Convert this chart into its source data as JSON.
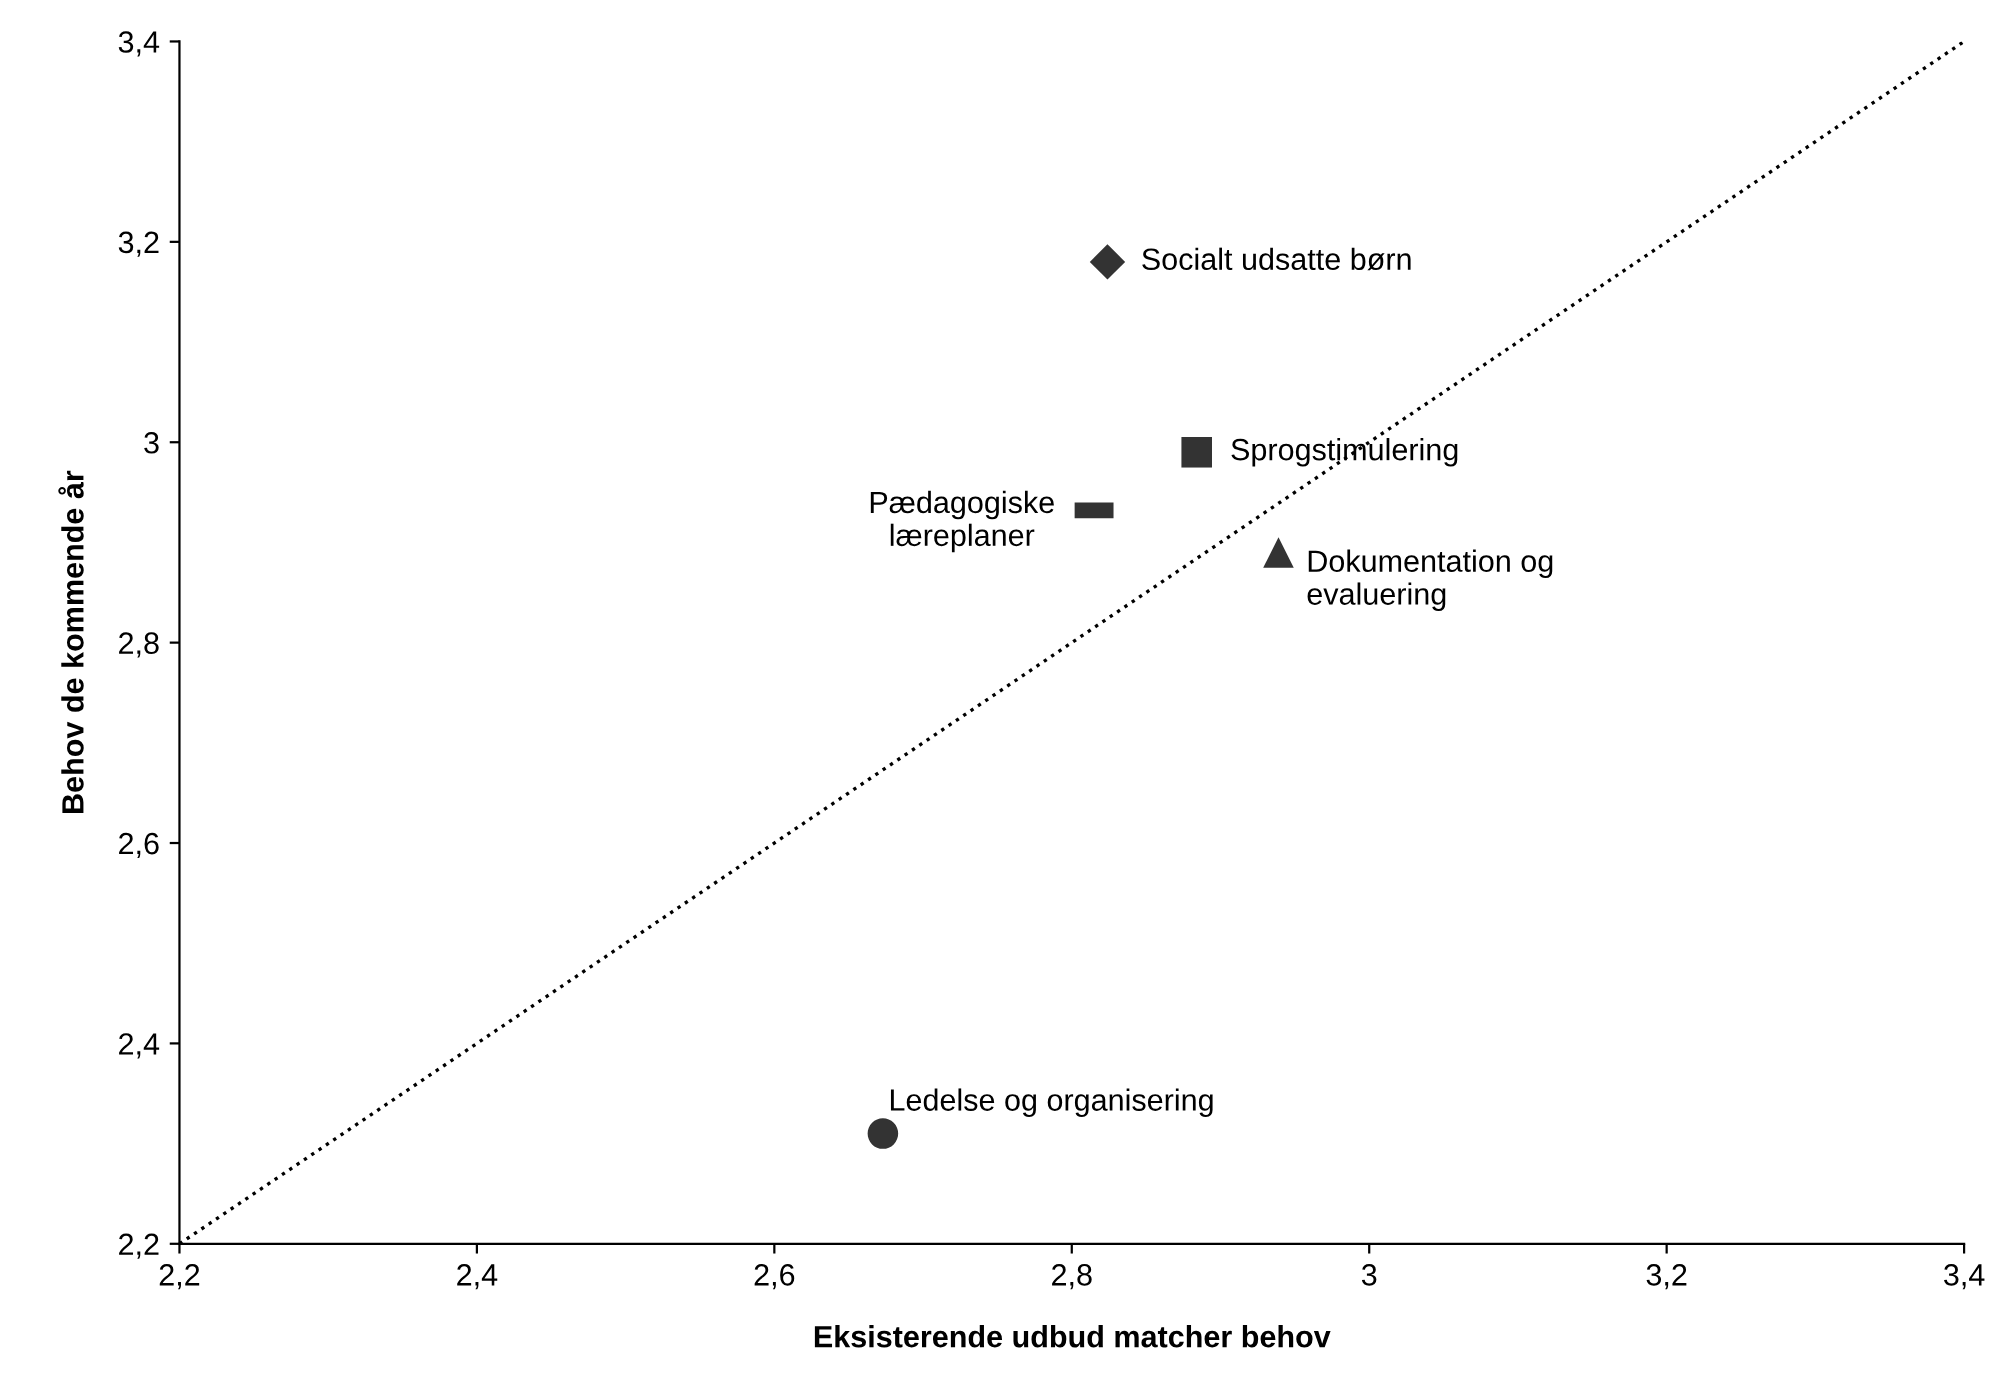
{
  "chart_data": {
    "type": "scatter",
    "xlabel": "Eksisterende udbud matcher behov",
    "ylabel": "Behov de kommende år",
    "xlim": [
      2.2,
      3.4
    ],
    "ylim": [
      2.2,
      3.4
    ],
    "xticks": [
      {
        "value": 2.2,
        "label": "2,2"
      },
      {
        "value": 2.4,
        "label": "2,4"
      },
      {
        "value": 2.6,
        "label": "2,6"
      },
      {
        "value": 2.8,
        "label": "2,8"
      },
      3,
      {
        "value": 3.2,
        "label": "3,2"
      },
      {
        "value": 3.4,
        "label": "3,4"
      }
    ],
    "yticks": [
      {
        "value": 2.2,
        "label": "2,2"
      },
      {
        "value": 2.4,
        "label": "2,4"
      },
      {
        "value": 2.6,
        "label": "2,6"
      },
      {
        "value": 2.8,
        "label": "2,8"
      },
      3,
      {
        "value": 3.2,
        "label": "3,2"
      },
      {
        "value": 3.4,
        "label": "3,4"
      }
    ],
    "grid": false,
    "series": [
      {
        "name": "Socialt udsatte børn",
        "color": "#333333",
        "marker": "diamond",
        "x": [
          2.824
        ],
        "values": [
          3.18
        ]
      },
      {
        "name": "Sprogstimulering",
        "color": "#333333",
        "marker": "square",
        "x": [
          2.884
        ],
        "values": [
          2.99
        ]
      },
      {
        "name": "Pædagogiske\nlæreplaner",
        "color": "#333333",
        "x": [
          2.815
        ],
        "values": [
          2.932
        ]
      },
      {
        "name": "Dokumentation og\nevaluering",
        "color": "#333333",
        "marker": "triangle",
        "x": [
          2.939
        ],
        "values": [
          2.89
        ]
      },
      {
        "name": "Ledelse og organisering",
        "color": "#333333",
        "marker": "circle",
        "x": [
          2.673
        ],
        "values": [
          2.31
        ]
      },
      {
        "type": "line",
        "color": "#000000",
        "line_style": "dotted",
        "marker": "none",
        "x": [
          2.2,
          3.4
        ],
        "values": [
          2.2,
          3.4
        ]
      }
    ]
  }
}
